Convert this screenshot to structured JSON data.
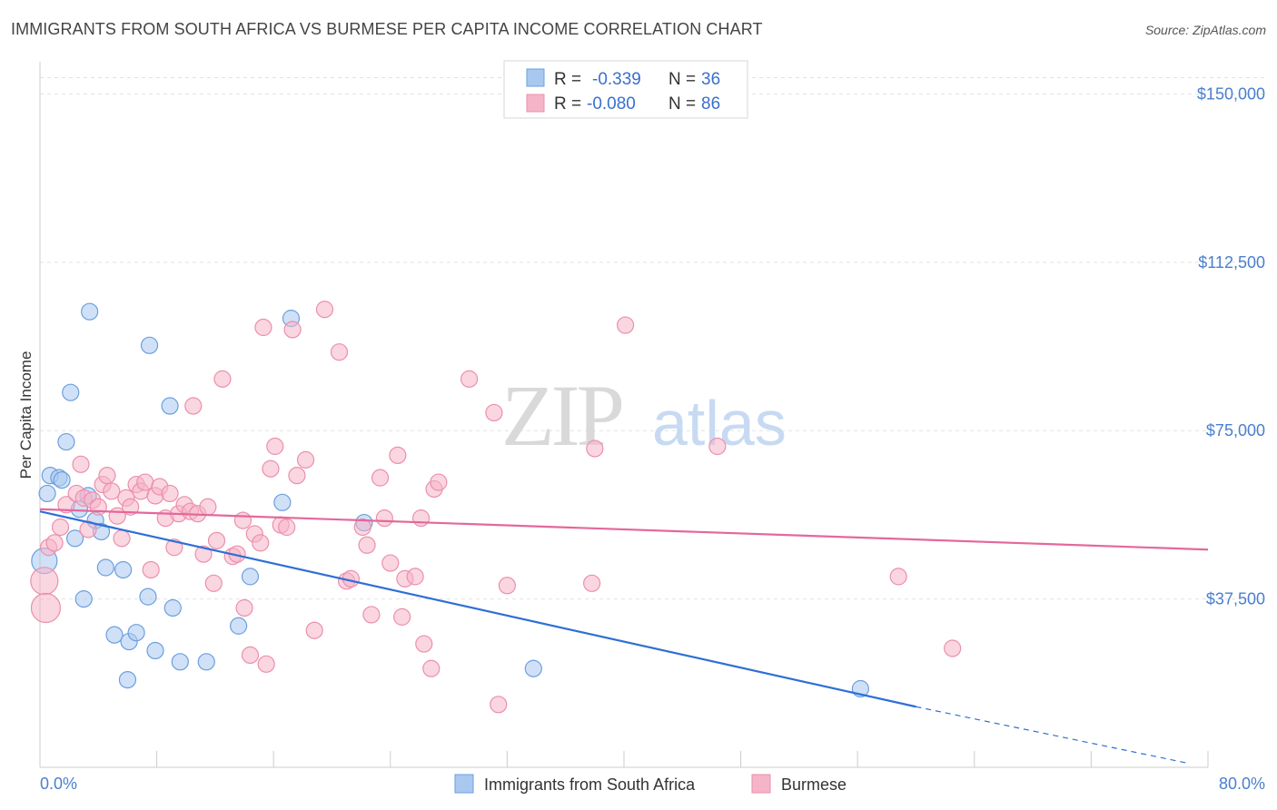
{
  "header": {
    "title": "IMMIGRANTS FROM SOUTH AFRICA VS BURMESE PER CAPITA INCOME CORRELATION CHART",
    "source": "Source: ZipAtlas.com"
  },
  "watermark": {
    "part1": "ZIP",
    "part2": "atlas"
  },
  "legend": {
    "rows": [
      {
        "r_label": "R = ",
        "r_value": "-0.339",
        "n_label": "N = ",
        "n_value": "36",
        "color": "#a9c8f0"
      },
      {
        "r_label": "R = ",
        "r_value": "-0.080",
        "n_label": "N = ",
        "n_value": "86",
        "color": "#f5b5c9"
      }
    ]
  },
  "chart_data": {
    "type": "scatter",
    "xlabel": "",
    "ylabel": "Per Capita Income",
    "xlim": [
      0,
      80
    ],
    "ylim": [
      0,
      160000
    ],
    "x_tick_labels": [
      "0.0%",
      "80.0%"
    ],
    "y_ticks": [
      {
        "value": 37500,
        "label": "$37,500"
      },
      {
        "value": 75000,
        "label": "$75,000"
      },
      {
        "value": 112500,
        "label": "$112,500"
      },
      {
        "value": 150000,
        "label": "$150,000"
      }
    ],
    "grid": true,
    "legend_position": "top-center",
    "series": [
      {
        "name": "Immigrants from South Africa",
        "color": "#6a9fe0",
        "fill": "#a9c8f0",
        "trend": {
          "x0": 0,
          "y0": 57000,
          "x1": 60,
          "y1": 13500,
          "dash_to": 78.5,
          "dash_y": 1000,
          "color": "#2e6fd6"
        },
        "points": [
          [
            0.3,
            46000,
            14
          ],
          [
            0.5,
            61000,
            9
          ],
          [
            0.7,
            65000,
            9
          ],
          [
            1.3,
            64500,
            9
          ],
          [
            1.5,
            64000,
            9
          ],
          [
            1.8,
            72500,
            9
          ],
          [
            2.1,
            83500,
            9
          ],
          [
            2.4,
            51000,
            9
          ],
          [
            2.7,
            57500,
            9
          ],
          [
            3.0,
            37500,
            9
          ],
          [
            3.3,
            60500,
            9
          ],
          [
            3.4,
            101500,
            9
          ],
          [
            3.8,
            55000,
            9
          ],
          [
            4.2,
            52500,
            9
          ],
          [
            4.5,
            44500,
            9
          ],
          [
            5.1,
            29500,
            9
          ],
          [
            5.7,
            44000,
            9
          ],
          [
            6.0,
            19500,
            9
          ],
          [
            6.1,
            28000,
            9
          ],
          [
            6.6,
            30000,
            9
          ],
          [
            7.4,
            38000,
            9
          ],
          [
            7.5,
            94000,
            9
          ],
          [
            7.9,
            26000,
            9
          ],
          [
            8.9,
            80500,
            9
          ],
          [
            9.1,
            35500,
            9
          ],
          [
            9.6,
            23500,
            9
          ],
          [
            11.4,
            23500,
            9
          ],
          [
            13.6,
            31500,
            9
          ],
          [
            14.4,
            42500,
            9
          ],
          [
            16.6,
            59000,
            9
          ],
          [
            17.2,
            100000,
            9
          ],
          [
            22.2,
            54500,
            9
          ],
          [
            33.8,
            22000,
            9
          ],
          [
            56.2,
            17500,
            9
          ]
        ]
      },
      {
        "name": "Burmese",
        "color": "#ec8fab",
        "fill": "#f5b5c9",
        "trend": {
          "x0": 0,
          "y0": 57500,
          "x1": 80,
          "y1": 48500,
          "color": "#e4689a"
        },
        "points": [
          [
            0.3,
            41500,
            15
          ],
          [
            0.4,
            35500,
            16
          ],
          [
            0.6,
            49000,
            9
          ],
          [
            1.0,
            50000,
            9
          ],
          [
            1.4,
            53500,
            9
          ],
          [
            1.8,
            58500,
            9
          ],
          [
            2.5,
            61000,
            9
          ],
          [
            2.8,
            67500,
            9
          ],
          [
            3.0,
            60000,
            9
          ],
          [
            3.3,
            53000,
            9
          ],
          [
            3.6,
            59500,
            9
          ],
          [
            4.0,
            58000,
            9
          ],
          [
            4.3,
            63000,
            9
          ],
          [
            4.6,
            65000,
            9
          ],
          [
            4.9,
            61500,
            9
          ],
          [
            5.3,
            56000,
            9
          ],
          [
            5.6,
            51000,
            9
          ],
          [
            5.9,
            60000,
            9
          ],
          [
            6.2,
            58000,
            9
          ],
          [
            6.6,
            63000,
            9
          ],
          [
            6.9,
            61500,
            9
          ],
          [
            7.2,
            63500,
            9
          ],
          [
            7.6,
            44000,
            9
          ],
          [
            7.9,
            60500,
            9
          ],
          [
            8.2,
            62500,
            9
          ],
          [
            8.6,
            55500,
            9
          ],
          [
            8.9,
            61000,
            9
          ],
          [
            9.2,
            49000,
            9
          ],
          [
            9.5,
            56500,
            9
          ],
          [
            9.9,
            58500,
            9
          ],
          [
            10.3,
            57000,
            9
          ],
          [
            10.5,
            80500,
            9
          ],
          [
            10.8,
            56500,
            9
          ],
          [
            11.2,
            47500,
            9
          ],
          [
            11.5,
            58000,
            9
          ],
          [
            11.9,
            41000,
            9
          ],
          [
            12.1,
            50500,
            9
          ],
          [
            12.5,
            86500,
            9
          ],
          [
            13.2,
            47000,
            9
          ],
          [
            13.5,
            47500,
            9
          ],
          [
            13.9,
            55000,
            9
          ],
          [
            14.0,
            35500,
            9
          ],
          [
            14.4,
            25000,
            9
          ],
          [
            14.7,
            52000,
            9
          ],
          [
            15.1,
            50000,
            9
          ],
          [
            15.3,
            98000,
            9
          ],
          [
            15.5,
            23000,
            9
          ],
          [
            15.8,
            66500,
            9
          ],
          [
            16.1,
            71500,
            9
          ],
          [
            16.5,
            54000,
            9
          ],
          [
            16.9,
            53500,
            9
          ],
          [
            17.3,
            97500,
            9
          ],
          [
            17.6,
            65000,
            9
          ],
          [
            18.2,
            68500,
            9
          ],
          [
            18.8,
            30500,
            9
          ],
          [
            19.5,
            102000,
            9
          ],
          [
            20.5,
            92500,
            9
          ],
          [
            21.0,
            41500,
            9
          ],
          [
            21.3,
            42000,
            9
          ],
          [
            22.1,
            53500,
            9
          ],
          [
            22.4,
            49500,
            9
          ],
          [
            22.7,
            34000,
            9
          ],
          [
            23.3,
            64500,
            9
          ],
          [
            23.6,
            55500,
            9
          ],
          [
            24.0,
            45500,
            9
          ],
          [
            24.5,
            69500,
            9
          ],
          [
            24.8,
            33500,
            9
          ],
          [
            25.0,
            42000,
            9
          ],
          [
            25.7,
            42500,
            9
          ],
          [
            26.1,
            55500,
            9
          ],
          [
            26.3,
            27500,
            9
          ],
          [
            26.8,
            22000,
            9
          ],
          [
            27.0,
            62000,
            9
          ],
          [
            27.3,
            63500,
            9
          ],
          [
            29.4,
            86500,
            9
          ],
          [
            31.1,
            79000,
            9
          ],
          [
            31.4,
            14000,
            9
          ],
          [
            32.0,
            40500,
            9
          ],
          [
            38.0,
            71000,
            9
          ],
          [
            37.8,
            41000,
            9
          ],
          [
            40.1,
            98500,
            9
          ],
          [
            46.4,
            71500,
            9
          ],
          [
            58.8,
            42500,
            9
          ],
          [
            62.5,
            26500,
            9
          ]
        ]
      }
    ]
  }
}
